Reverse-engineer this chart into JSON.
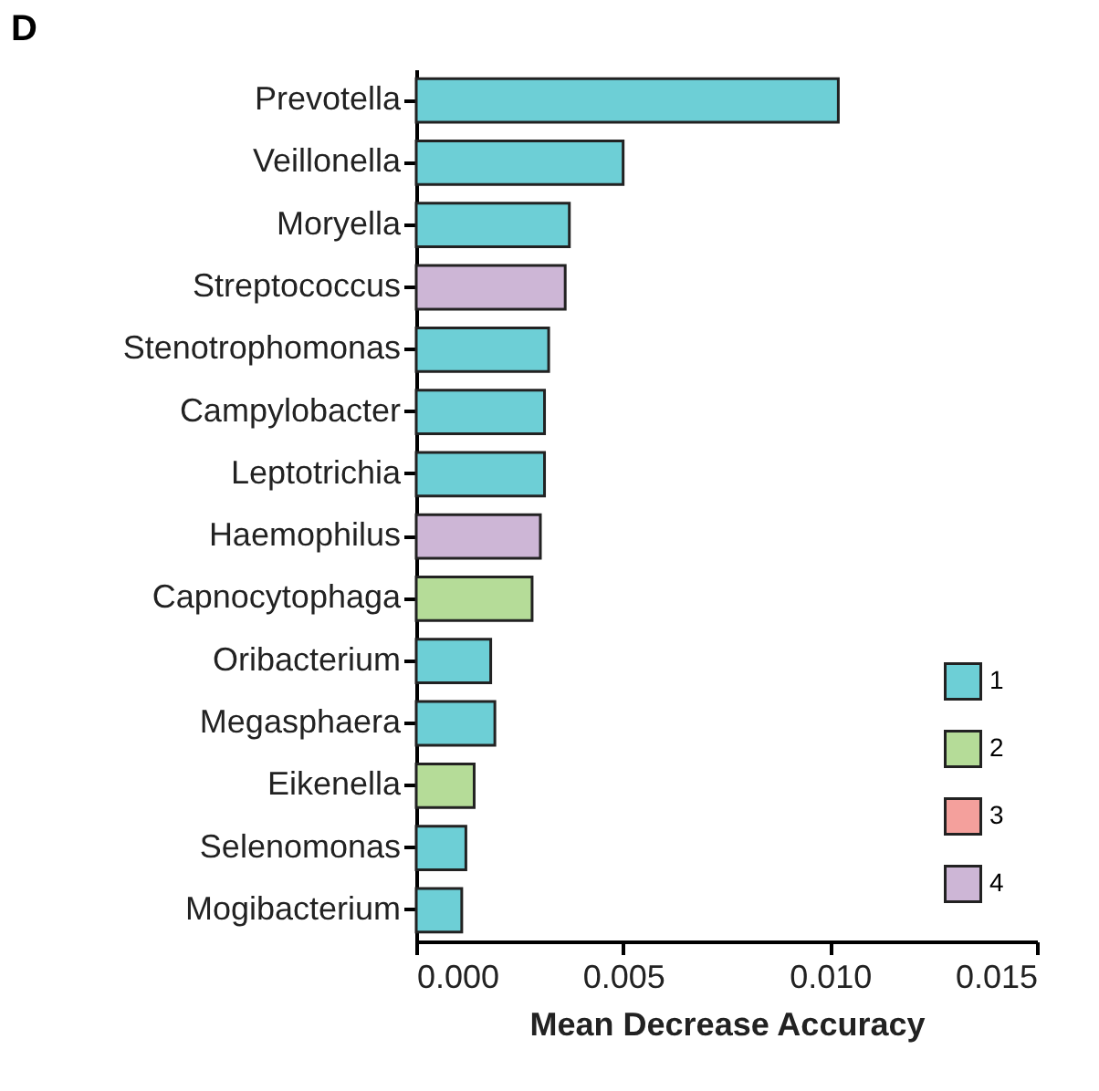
{
  "chart_data": {
    "type": "bar",
    "title": "D",
    "orientation": "horizontal",
    "xlabel": "Mean Decrease Accuracy",
    "categories": [
      "Prevotella",
      "Veillonella",
      "Moryella",
      "Streptococcus",
      "Stenotrophomonas",
      "Campylobacter",
      "Leptotrichia",
      "Haemophilus",
      "Capnocytophaga",
      "Oribacterium",
      "Megasphaera",
      "Eikenella",
      "Selenomonas",
      "Mogibacterium"
    ],
    "series": [
      {
        "name": "1",
        "color": "#6dcfd6",
        "values": [
          0.0102,
          0.005,
          0.0037,
          null,
          0.0032,
          0.0031,
          0.0031,
          null,
          null,
          0.0018,
          0.0019,
          null,
          0.0012,
          0.0011
        ]
      },
      {
        "name": "2",
        "color": "#b5dc98",
        "values": [
          null,
          null,
          null,
          null,
          null,
          null,
          null,
          null,
          0.0028,
          null,
          null,
          0.0014,
          null,
          null
        ]
      },
      {
        "name": "3",
        "color": "#f4a09c",
        "values": [
          null,
          null,
          null,
          null,
          null,
          null,
          null,
          null,
          null,
          null,
          null,
          null,
          null,
          null
        ]
      },
      {
        "name": "4",
        "color": "#cdb6d6",
        "values": [
          null,
          null,
          null,
          0.0036,
          null,
          null,
          null,
          0.003,
          null,
          null,
          null,
          null,
          null,
          null
        ]
      }
    ],
    "xlim": [
      0,
      0.015
    ],
    "xticks": [
      {
        "value": 0,
        "label": "0.000"
      },
      {
        "value": 0.005,
        "label": "0.005"
      },
      {
        "value": 0.01,
        "label": "0.010"
      },
      {
        "value": 0.015,
        "label": "0.015"
      }
    ],
    "grid": false,
    "legend": "bottom right"
  }
}
